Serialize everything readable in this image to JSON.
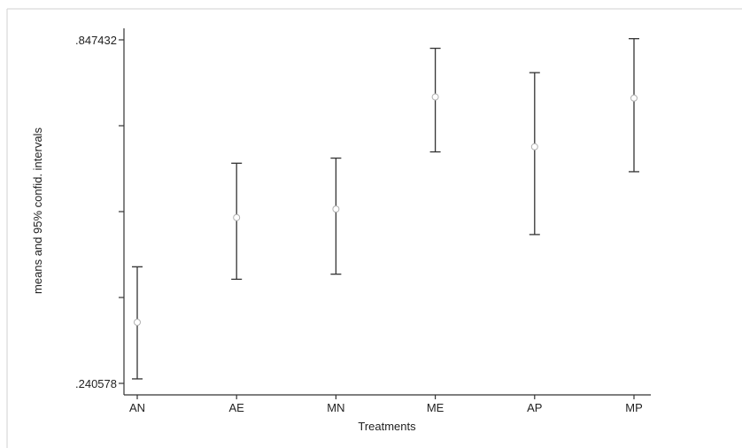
{
  "chart_data": {
    "type": "errorbar",
    "title": "",
    "xlabel": "Treatments",
    "ylabel": "means and 95% confid. intervals",
    "categories": [
      "AN",
      "AE",
      "MN",
      "ME",
      "AP",
      "MP"
    ],
    "means": [
      0.3485,
      0.5335,
      0.5485,
      0.7465,
      0.6585,
      0.7445
    ],
    "ci_lower": [
      0.2485,
      0.4245,
      0.4335,
      0.6495,
      0.5035,
      0.6145
    ],
    "ci_upper": [
      0.4465,
      0.6295,
      0.6385,
      0.8325,
      0.7895,
      0.8495
    ],
    "y_tick_labels": [
      ".240578",
      ".847432"
    ],
    "ylim": [
      0.240578,
      0.847432
    ],
    "grid": false,
    "legend": "none",
    "colors": {
      "bar": "#333333",
      "marker": "#b0b0b0",
      "axis": "#333333",
      "frame": "#cccccc"
    }
  }
}
